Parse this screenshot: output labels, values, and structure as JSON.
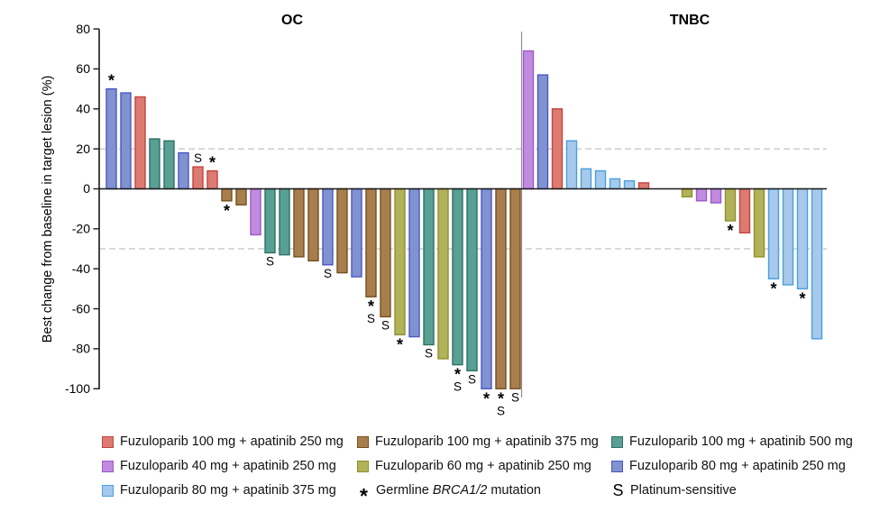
{
  "chart_data": {
    "type": "bar",
    "variant": "waterfall",
    "title": "",
    "ylabel": "Best change from baseline in target lesion (%)",
    "ylim": [
      -100,
      80
    ],
    "yticks": [
      80,
      60,
      40,
      20,
      0,
      -20,
      -40,
      -60,
      -80,
      -100
    ],
    "reference_lines": [
      20,
      -30
    ],
    "grid": false,
    "legend_position": "bottom",
    "panels": [
      {
        "title": "OC",
        "bars": [
          {
            "value": 50,
            "group": "f80_a250",
            "marker": "star"
          },
          {
            "value": 48,
            "group": "f80_a250",
            "marker": null
          },
          {
            "value": 46,
            "group": "f100_a250",
            "marker": null
          },
          {
            "value": 25,
            "group": "f100_a500",
            "marker": null
          },
          {
            "value": 24,
            "group": "f100_a500",
            "marker": null
          },
          {
            "value": 18,
            "group": "f80_a250",
            "marker": null
          },
          {
            "value": 11,
            "group": "f100_a250",
            "marker": "s"
          },
          {
            "value": 9,
            "group": "f100_a250",
            "marker": "star"
          },
          {
            "value": -6,
            "group": "f100_a375",
            "marker": "star"
          },
          {
            "value": -8,
            "group": "f100_a375",
            "marker": null
          },
          {
            "value": -23,
            "group": "f40_a250",
            "marker": null
          },
          {
            "value": -32,
            "group": "f100_a500",
            "marker": "s"
          },
          {
            "value": -33,
            "group": "f100_a500",
            "marker": null
          },
          {
            "value": -34,
            "group": "f100_a375",
            "marker": null
          },
          {
            "value": -36,
            "group": "f100_a375",
            "marker": null
          },
          {
            "value": -38,
            "group": "f80_a250",
            "marker": "s"
          },
          {
            "value": -42,
            "group": "f100_a375",
            "marker": null
          },
          {
            "value": -44,
            "group": "f80_a250",
            "marker": null
          },
          {
            "value": -54,
            "group": "f100_a375",
            "marker": "star_s"
          },
          {
            "value": -64,
            "group": "f100_a375",
            "marker": "s"
          },
          {
            "value": -73,
            "group": "f60_a250",
            "marker": "star"
          },
          {
            "value": -74,
            "group": "f80_a250",
            "marker": null
          },
          {
            "value": -78,
            "group": "f100_a500",
            "marker": "s"
          },
          {
            "value": -85,
            "group": "f60_a250",
            "marker": null
          },
          {
            "value": -88,
            "group": "f100_a500",
            "marker": "star_s"
          },
          {
            "value": -91,
            "group": "f100_a500",
            "marker": "s"
          },
          {
            "value": -100,
            "group": "f80_a250",
            "marker": "star"
          },
          {
            "value": -100,
            "group": "f100_a375",
            "marker": "star_s"
          },
          {
            "value": -100,
            "group": "f100_a375",
            "marker": "s"
          }
        ]
      },
      {
        "title": "TNBC",
        "bars": [
          {
            "value": 69,
            "group": "f40_a250",
            "marker": null
          },
          {
            "value": 57,
            "group": "f80_a250",
            "marker": null
          },
          {
            "value": 40,
            "group": "f100_a250",
            "marker": null
          },
          {
            "value": 24,
            "group": "f80_a375",
            "marker": null
          },
          {
            "value": 10,
            "group": "f80_a375",
            "marker": null
          },
          {
            "value": 9,
            "group": "f80_a375",
            "marker": null
          },
          {
            "value": 5,
            "group": "f80_a375",
            "marker": null
          },
          {
            "value": 4,
            "group": "f80_a375",
            "marker": null
          },
          {
            "value": 3,
            "group": "f100_a250",
            "marker": null
          },
          {
            "value": 0,
            "group": null,
            "marker": null
          },
          {
            "value": 0,
            "group": null,
            "marker": null
          },
          {
            "value": -4,
            "group": "f60_a250",
            "marker": null
          },
          {
            "value": -6,
            "group": "f40_a250",
            "marker": null
          },
          {
            "value": -7,
            "group": "f40_a250",
            "marker": null
          },
          {
            "value": -16,
            "group": "f60_a250",
            "marker": "star"
          },
          {
            "value": -22,
            "group": "f100_a250",
            "marker": null
          },
          {
            "value": -34,
            "group": "f60_a250",
            "marker": null
          },
          {
            "value": -45,
            "group": "f80_a375",
            "marker": "star"
          },
          {
            "value": -48,
            "group": "f80_a375",
            "marker": null
          },
          {
            "value": -50,
            "group": "f80_a375",
            "marker": "star"
          },
          {
            "value": -75,
            "group": "f80_a375",
            "marker": null
          }
        ]
      }
    ],
    "groups": {
      "f100_a250": {
        "label": "Fuzuloparib 100 mg + apatinib 250 mg",
        "fill": "#dd7b72",
        "stroke": "#c2453c"
      },
      "f100_a375": {
        "label": "Fuzuloparib 100 mg + apatinib 375 mg",
        "fill": "#a97e4d",
        "stroke": "#75501f"
      },
      "f100_a500": {
        "label": "Fuzuloparib 100 mg + apatinib 500 mg",
        "fill": "#58a093",
        "stroke": "#2d7164"
      },
      "f40_a250": {
        "label": "Fuzuloparib 40 mg + apatinib 250 mg",
        "fill": "#c18bdf",
        "stroke": "#9d58ce"
      },
      "f60_a250": {
        "label": "Fuzuloparib 60 mg + apatinib 250 mg",
        "fill": "#b1b259",
        "stroke": "#8f912f"
      },
      "f80_a250": {
        "label": "Fuzuloparib 80 mg + apatinib 250 mg",
        "fill": "#8093d1",
        "stroke": "#4d55c4"
      },
      "f80_a375": {
        "label": "Fuzuloparib 80 mg + apatinib 375 mg",
        "fill": "#a7c9eb",
        "stroke": "#47a0e2"
      }
    },
    "markers": {
      "star": {
        "glyph": "*",
        "label_parts": [
          "Germline ",
          "BRCA1/2",
          " mutation"
        ],
        "italic_part_index": 1
      },
      "s": {
        "glyph": "S",
        "label_parts": [
          "Platinum-sensitive"
        ],
        "italic_part_index": -1
      }
    },
    "legend_rows": [
      [
        {
          "swatch": "f100_a250"
        },
        {
          "swatch": "f100_a375"
        },
        {
          "swatch": "f100_a500"
        }
      ],
      [
        {
          "swatch": "f40_a250"
        },
        {
          "swatch": "f60_a250"
        },
        {
          "swatch": "f80_a250"
        }
      ],
      [
        {
          "swatch": "f80_a375"
        },
        {
          "marker": "star"
        },
        {
          "marker": "s"
        }
      ]
    ]
  }
}
